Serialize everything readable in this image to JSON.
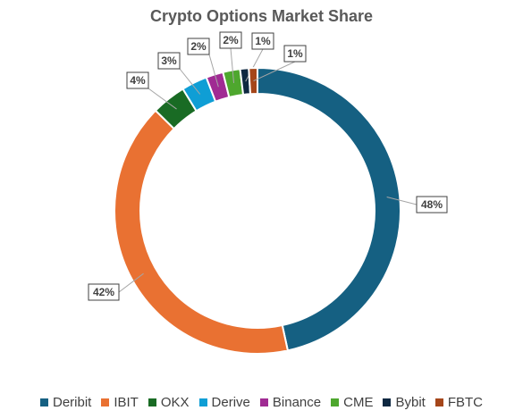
{
  "chart_data": {
    "type": "pie",
    "variant": "donut",
    "title": "Crypto Options Market Share",
    "categories": [
      "Deribit",
      "IBIT",
      "OKX",
      "Derive",
      "Binance",
      "CME",
      "Bybit",
      "FBTC"
    ],
    "values": [
      48,
      42,
      4,
      3,
      2,
      2,
      1,
      1
    ],
    "labels": [
      "48%",
      "42%",
      "4%",
      "3%",
      "2%",
      "2%",
      "1%",
      "1%"
    ],
    "unit": "%",
    "colors": [
      "#156082",
      "#E97132",
      "#196B24",
      "#0F9ED5",
      "#A02B93",
      "#4EA72E",
      "#0E2841",
      "#A5461A"
    ],
    "legend": "bottom"
  }
}
